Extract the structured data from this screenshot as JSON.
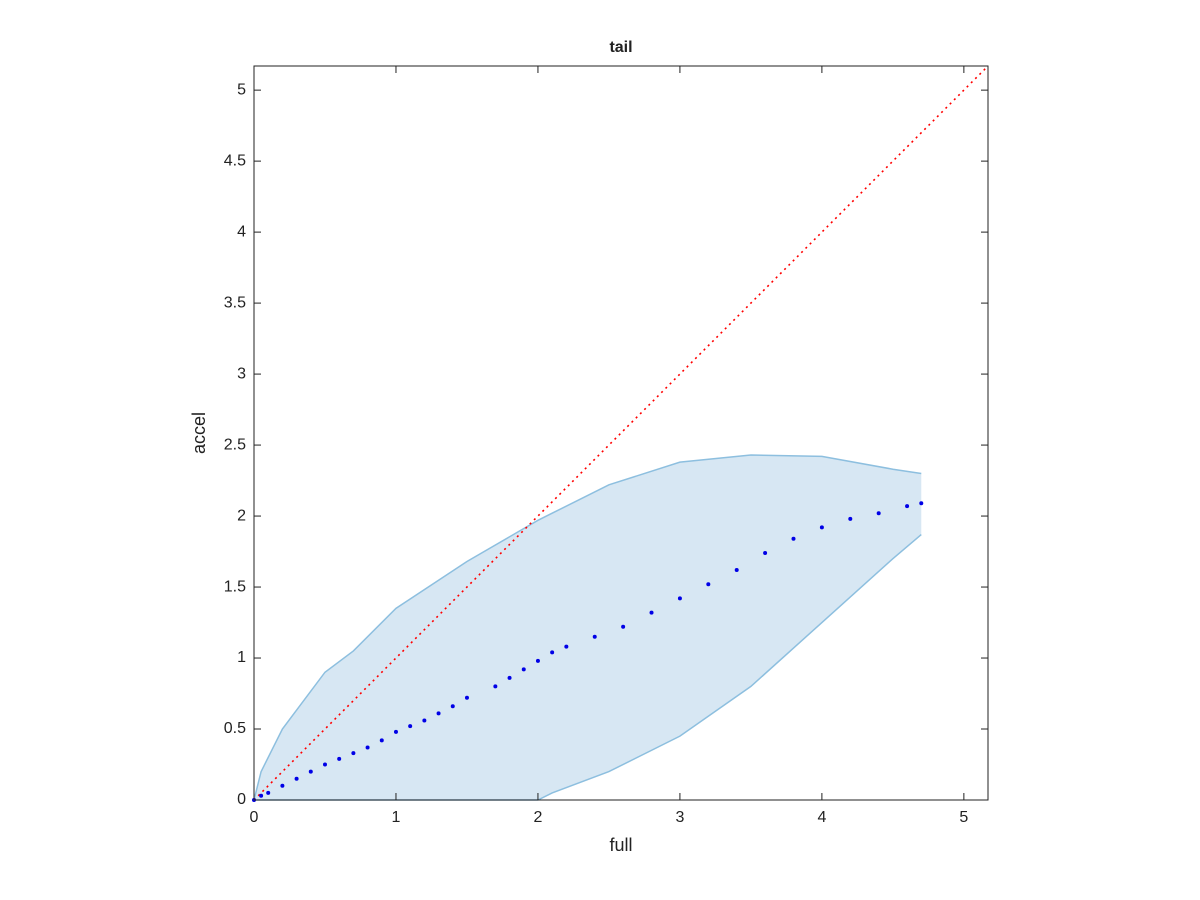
{
  "chart_data": {
    "type": "scatter",
    "title": "tail",
    "x_label": "full",
    "y_label": "accel",
    "xlim": [
      0,
      5.17
    ],
    "ylim": [
      0,
      5.17
    ],
    "xticks": [
      0,
      1,
      2,
      3,
      4,
      5
    ],
    "yticks": [
      0,
      0.5,
      1,
      1.5,
      2,
      2.5,
      3,
      3.5,
      4,
      4.5,
      5
    ],
    "band": {
      "color": "#d7e7f3",
      "edge_color": "#8dbfdf",
      "x": [
        0,
        0.05,
        0.2,
        0.5,
        0.7,
        1.0,
        1.5,
        2.0,
        2.1,
        2.5,
        3.0,
        3.5,
        4.0,
        4.5,
        4.7
      ],
      "upper": [
        0,
        0.2,
        0.5,
        0.9,
        1.05,
        1.35,
        1.68,
        1.97,
        2.02,
        2.22,
        2.38,
        2.43,
        2.42,
        2.33,
        2.3
      ],
      "lower": [
        0,
        0,
        0,
        0,
        0,
        0,
        0,
        0,
        0.05,
        0.2,
        0.45,
        0.8,
        1.25,
        1.7,
        1.87
      ]
    },
    "reference": {
      "color": "#ff0000",
      "x": [
        0,
        5.17
      ],
      "values": [
        0,
        5.17
      ]
    },
    "points": {
      "color": "#0000e6",
      "x": [
        0,
        0.05,
        0.1,
        0.2,
        0.3,
        0.4,
        0.5,
        0.6,
        0.7,
        0.8,
        0.9,
        1.0,
        1.1,
        1.2,
        1.3,
        1.4,
        1.5,
        1.7,
        1.8,
        1.9,
        2.0,
        2.1,
        2.2,
        2.4,
        2.6,
        2.8,
        3.0,
        3.2,
        3.4,
        3.6,
        3.8,
        4.0,
        4.2,
        4.4,
        4.6,
        4.7
      ],
      "values": [
        0,
        0.03,
        0.05,
        0.1,
        0.15,
        0.2,
        0.25,
        0.29,
        0.33,
        0.37,
        0.42,
        0.48,
        0.52,
        0.56,
        0.61,
        0.66,
        0.72,
        0.8,
        0.86,
        0.92,
        0.98,
        1.04,
        1.08,
        1.15,
        1.22,
        1.32,
        1.42,
        1.52,
        1.62,
        1.74,
        1.84,
        1.92,
        1.98,
        2.02,
        2.07,
        2.09
      ]
    }
  }
}
